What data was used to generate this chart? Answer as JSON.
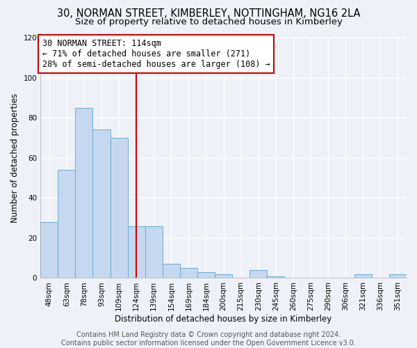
{
  "title": "30, NORMAN STREET, KIMBERLEY, NOTTINGHAM, NG16 2LA",
  "subtitle": "Size of property relative to detached houses in Kimberley",
  "xlabel": "Distribution of detached houses by size in Kimberley",
  "ylabel": "Number of detached properties",
  "bar_labels": [
    "48sqm",
    "63sqm",
    "78sqm",
    "93sqm",
    "109sqm",
    "124sqm",
    "139sqm",
    "154sqm",
    "169sqm",
    "184sqm",
    "200sqm",
    "215sqm",
    "230sqm",
    "245sqm",
    "260sqm",
    "275sqm",
    "290sqm",
    "306sqm",
    "321sqm",
    "336sqm",
    "351sqm"
  ],
  "bar_values": [
    28,
    54,
    85,
    74,
    70,
    26,
    26,
    7,
    5,
    3,
    2,
    0,
    4,
    1,
    0,
    0,
    0,
    0,
    2,
    0,
    2
  ],
  "bar_color": "#c5d8f0",
  "bar_edgecolor": "#6aaad4",
  "vline_x": 5.0,
  "vline_color": "#cc0000",
  "annotation_line1": "30 NORMAN STREET: 114sqm",
  "annotation_line2": "← 71% of detached houses are smaller (271)",
  "annotation_line3": "28% of semi-detached houses are larger (108) →",
  "annotation_box_edgecolor": "#cc0000",
  "annotation_box_facecolor": "#ffffff",
  "ylim": [
    0,
    120
  ],
  "yticks": [
    0,
    20,
    40,
    60,
    80,
    100,
    120
  ],
  "background_color": "#eef2f8",
  "grid_color": "#ffffff",
  "title_fontsize": 10.5,
  "subtitle_fontsize": 9.5,
  "axis_fontsize": 8.5,
  "tick_fontsize": 7.5,
  "footer_text": "Contains HM Land Registry data © Crown copyright and database right 2024.\nContains public sector information licensed under the Open Government Licence v3.0.",
  "footer_fontsize": 7
}
